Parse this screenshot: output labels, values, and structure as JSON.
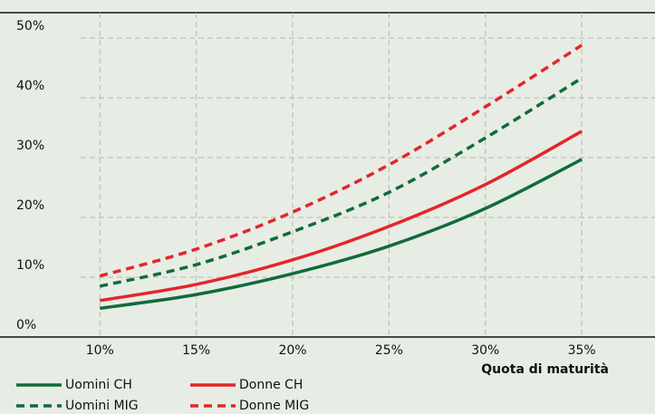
{
  "chart_data": {
    "type": "line",
    "x_label": "Quota di maturità",
    "x": [
      10,
      15,
      20,
      25,
      30,
      35
    ],
    "series": [
      {
        "name": "Uomini CH",
        "color": "#116b3b",
        "dashed": false,
        "values": [
          4.8,
          7.1,
          10.6,
          15.2,
          21.5,
          29.7
        ]
      },
      {
        "name": "Donne CH",
        "color": "#e3262b",
        "dashed": false,
        "values": [
          6.1,
          8.8,
          12.9,
          18.5,
          25.5,
          34.4
        ]
      },
      {
        "name": "Uomini MIG",
        "color": "#116b3b",
        "dashed": true,
        "values": [
          8.5,
          12.1,
          17.6,
          24.2,
          33.3,
          43.3
        ]
      },
      {
        "name": "Donne MIG",
        "color": "#e3262b",
        "dashed": true,
        "values": [
          10.2,
          14.7,
          20.9,
          28.8,
          38.5,
          48.8
        ]
      }
    ],
    "xlim": [
      9,
      38.8
    ],
    "ylim": [
      0,
      50
    ],
    "xticks": [
      {
        "value": 10,
        "label": "10%"
      },
      {
        "value": 15,
        "label": "15%"
      },
      {
        "value": 20,
        "label": "20%"
      },
      {
        "value": 25,
        "label": "25%"
      },
      {
        "value": 30,
        "label": "30%"
      },
      {
        "value": 35,
        "label": "35%"
      }
    ],
    "yticks": [
      {
        "value": 0,
        "label": "0%"
      },
      {
        "value": 10,
        "label": "10%"
      },
      {
        "value": 20,
        "label": "20%"
      },
      {
        "value": 30,
        "label": "30%"
      },
      {
        "value": 40,
        "label": "40%"
      },
      {
        "value": 50,
        "label": "50%"
      }
    ],
    "grid": true
  }
}
